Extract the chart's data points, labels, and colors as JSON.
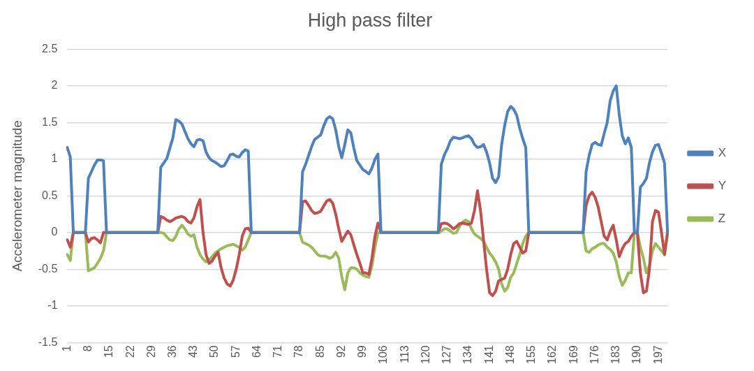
{
  "chart_data": {
    "type": "line",
    "title": "High pass filter",
    "ylabel": "Accelerometer magnitude",
    "categories": [
      "1",
      null,
      null,
      null,
      null,
      null,
      null,
      "8",
      null,
      null,
      null,
      null,
      null,
      null,
      "15",
      null,
      null,
      null,
      null,
      null,
      null,
      "22",
      null,
      null,
      null,
      null,
      null,
      null,
      "29",
      null,
      null,
      null,
      null,
      null,
      null,
      "36",
      null,
      null,
      null,
      null,
      null,
      null,
      "43",
      null,
      null,
      null,
      null,
      null,
      null,
      "50",
      null,
      null,
      null,
      null,
      null,
      null,
      "57",
      null,
      null,
      null,
      null,
      null,
      null,
      "64",
      null,
      null,
      null,
      null,
      null,
      null,
      "71",
      null,
      null,
      null,
      null,
      null,
      null,
      "78",
      null,
      null,
      null,
      null,
      null,
      null,
      "85",
      null,
      null,
      null,
      null,
      null,
      null,
      "92",
      null,
      null,
      null,
      null,
      null,
      null,
      "99",
      null,
      null,
      null,
      null,
      null,
      null,
      "106",
      null,
      null,
      null,
      null,
      null,
      null,
      "113",
      null,
      null,
      null,
      null,
      null,
      null,
      "120",
      null,
      null,
      null,
      null,
      null,
      null,
      "127",
      null,
      null,
      null,
      null,
      null,
      null,
      "134",
      null,
      null,
      null,
      null,
      null,
      null,
      "141",
      null,
      null,
      null,
      null,
      null,
      null,
      "148",
      null,
      null,
      null,
      null,
      null,
      null,
      "155",
      null,
      null,
      null,
      null,
      null,
      null,
      "162",
      null,
      null,
      null,
      null,
      null,
      null,
      "169",
      null,
      null,
      null,
      null,
      null,
      null,
      "176",
      null,
      null,
      null,
      null,
      null,
      null,
      "183",
      null,
      null,
      null,
      null,
      null,
      null,
      "190",
      null,
      null,
      null,
      null,
      null,
      null,
      "197",
      null,
      null,
      null
    ],
    "series": [
      {
        "name": "X",
        "color": "#4f81bd",
        "values": [
          1.16,
          1.03,
          0,
          0,
          0,
          0,
          0,
          0.74,
          0.83,
          0.92,
          0.99,
          0.99,
          0.98,
          0,
          0,
          0,
          0,
          0,
          0,
          0,
          0,
          0,
          0,
          0,
          0,
          0,
          0,
          0,
          0,
          0,
          0,
          0.89,
          0.95,
          1.01,
          1.15,
          1.29,
          1.54,
          1.52,
          1.48,
          1.38,
          1.28,
          1.21,
          1.17,
          1.26,
          1.27,
          1.25,
          1.1,
          1.02,
          0.98,
          0.96,
          0.93,
          0.9,
          0.91,
          0.98,
          1.06,
          1.07,
          1.04,
          1.03,
          1.09,
          1.13,
          1.11,
          0,
          0,
          0,
          0,
          0,
          0,
          0,
          0,
          0,
          0,
          0,
          0,
          0,
          0,
          0,
          0,
          0,
          0.83,
          0.93,
          1.05,
          1.17,
          1.27,
          1.3,
          1.33,
          1.45,
          1.55,
          1.58,
          1.55,
          1.4,
          1.17,
          1.02,
          1.2,
          1.4,
          1.36,
          1.15,
          0.98,
          0.92,
          0.86,
          0.83,
          0.8,
          0.88,
          1.0,
          1.07,
          0,
          0,
          0,
          0,
          0,
          0,
          0,
          0,
          0,
          0,
          0,
          0,
          0,
          0,
          0,
          0,
          0,
          0,
          0,
          0,
          0.93,
          1.06,
          1.14,
          1.25,
          1.3,
          1.29,
          1.28,
          1.29,
          1.31,
          1.32,
          1.28,
          1.2,
          1.16,
          1.17,
          1.2,
          1.1,
          0.95,
          0.74,
          0.68,
          0.76,
          1.2,
          1.46,
          1.65,
          1.72,
          1.68,
          1.6,
          1.42,
          1.28,
          1.16,
          0,
          0,
          0,
          0,
          0,
          0,
          0,
          0,
          0,
          0,
          0,
          0,
          0,
          0,
          0,
          0,
          0,
          0,
          0,
          0.83,
          1.05,
          1.2,
          1.23,
          1.2,
          1.19,
          1.35,
          1.5,
          1.8,
          1.93,
          2.0,
          1.6,
          1.32,
          1.21,
          1.29,
          1.16,
          0,
          0,
          0.62,
          0.67,
          0.74,
          0.95,
          1.1,
          1.19,
          1.2,
          1.08,
          0.95,
          0
        ]
      },
      {
        "name": "Y",
        "color": "#c0504d",
        "values": [
          -0.1,
          -0.2,
          0,
          0,
          0,
          0,
          0,
          -0.13,
          -0.08,
          -0.07,
          -0.1,
          -0.14,
          0,
          0,
          0,
          0,
          0,
          0,
          0,
          0,
          0,
          0,
          0,
          0,
          0,
          0,
          0,
          0,
          0,
          0,
          0,
          0.22,
          0.2,
          0.17,
          0.15,
          0.17,
          0.2,
          0.21,
          0.22,
          0.2,
          0.15,
          0.13,
          0.2,
          0.35,
          0.45,
          0,
          -0.3,
          -0.42,
          -0.39,
          -0.32,
          -0.27,
          -0.48,
          -0.62,
          -0.7,
          -0.73,
          -0.65,
          -0.5,
          -0.3,
          -0.05,
          0.05,
          0.06,
          0,
          0,
          0,
          0,
          0,
          0,
          0,
          0,
          0,
          0,
          0,
          0,
          0,
          0,
          0,
          0,
          0,
          0.42,
          0.43,
          0.37,
          0.3,
          0.26,
          0.27,
          0.29,
          0.36,
          0.43,
          0.45,
          0.4,
          0.25,
          0.05,
          -0.12,
          -0.05,
          0.02,
          -0.03,
          -0.17,
          -0.3,
          -0.42,
          -0.55,
          -0.55,
          -0.57,
          -0.35,
          -0.05,
          0.13,
          0,
          0,
          0,
          0,
          0,
          0,
          0,
          0,
          0,
          0,
          0,
          0,
          0,
          0,
          0,
          0,
          0,
          0,
          0,
          0,
          0.12,
          0.13,
          0.12,
          0.09,
          0.05,
          0.08,
          0.12,
          0.13,
          0.12,
          0.11,
          0.13,
          0.3,
          0.57,
          0.3,
          -0.1,
          -0.5,
          -0.82,
          -0.86,
          -0.8,
          -0.66,
          -0.64,
          -0.62,
          -0.5,
          -0.3,
          -0.15,
          -0.12,
          -0.2,
          -0.28,
          -0.25,
          0,
          0,
          0,
          0,
          0,
          0,
          0,
          0,
          0,
          0,
          0,
          0,
          0,
          0,
          0,
          0,
          0,
          0,
          0,
          0.37,
          0.5,
          0.55,
          0.48,
          0.35,
          0.15,
          -0.05,
          -0.1,
          0.02,
          0.1,
          -0.1,
          -0.33,
          -0.22,
          -0.15,
          -0.12,
          -0.05,
          0,
          0,
          -0.55,
          -0.82,
          -0.8,
          -0.5,
          0.15,
          0.3,
          0.28,
          0,
          -0.3,
          0
        ]
      },
      {
        "name": "Z",
        "color": "#9bbb59",
        "values": [
          -0.3,
          -0.38,
          0,
          0,
          0,
          0,
          0,
          -0.52,
          -0.5,
          -0.48,
          -0.42,
          -0.35,
          -0.25,
          0,
          0,
          0,
          0,
          0,
          0,
          0,
          0,
          0,
          0,
          0,
          0,
          0,
          0,
          0,
          0,
          0,
          0,
          0,
          -0.01,
          -0.06,
          -0.1,
          -0.11,
          -0.05,
          0.05,
          0.1,
          0.05,
          -0.02,
          -0.05,
          -0.03,
          -0.2,
          -0.3,
          -0.36,
          -0.4,
          -0.38,
          -0.33,
          -0.28,
          -0.25,
          -0.22,
          -0.2,
          -0.18,
          -0.17,
          -0.16,
          -0.18,
          -0.2,
          -0.24,
          -0.2,
          -0.1,
          0,
          0,
          0,
          0,
          0,
          0,
          0,
          0,
          0,
          0,
          0,
          0,
          0,
          0,
          0,
          0,
          0,
          -0.13,
          -0.15,
          -0.17,
          -0.2,
          -0.25,
          -0.3,
          -0.32,
          -0.32,
          -0.33,
          -0.35,
          -0.33,
          -0.27,
          -0.35,
          -0.6,
          -0.78,
          -0.55,
          -0.48,
          -0.48,
          -0.5,
          -0.55,
          -0.58,
          -0.6,
          -0.61,
          -0.45,
          -0.2,
          0,
          0,
          0,
          0,
          0,
          0,
          0,
          0,
          0,
          0,
          0,
          0,
          0,
          0,
          0,
          0,
          0,
          0,
          0,
          0,
          0,
          0.02,
          0.05,
          0.05,
          0.02,
          -0.01,
          0,
          0.08,
          0.14,
          0.17,
          0.15,
          0.05,
          -0.02,
          -0.05,
          -0.08,
          -0.12,
          -0.2,
          -0.28,
          -0.33,
          -0.4,
          -0.5,
          -0.7,
          -0.8,
          -0.75,
          -0.61,
          -0.55,
          -0.42,
          -0.3,
          -0.15,
          -0.05,
          0,
          0,
          0,
          0,
          0,
          0,
          0,
          0,
          0,
          0,
          0,
          0,
          0,
          0,
          0,
          0,
          0,
          0,
          0,
          -0.25,
          -0.27,
          -0.22,
          -0.2,
          -0.17,
          -0.15,
          -0.15,
          -0.2,
          -0.23,
          -0.28,
          -0.4,
          -0.6,
          -0.72,
          -0.65,
          -0.55,
          -0.55,
          0,
          0,
          -0.2,
          -0.35,
          -0.55,
          -0.45,
          -0.25,
          -0.15,
          -0.2,
          -0.25,
          -0.3,
          0
        ]
      }
    ],
    "ylim": [
      -1.5,
      2.5
    ],
    "yticks": [
      -1.5,
      -1,
      -0.5,
      0,
      0.5,
      1,
      1.5,
      2,
      2.5
    ],
    "grid": "y",
    "legend": "right",
    "marker": "none",
    "line_style": "solid"
  }
}
